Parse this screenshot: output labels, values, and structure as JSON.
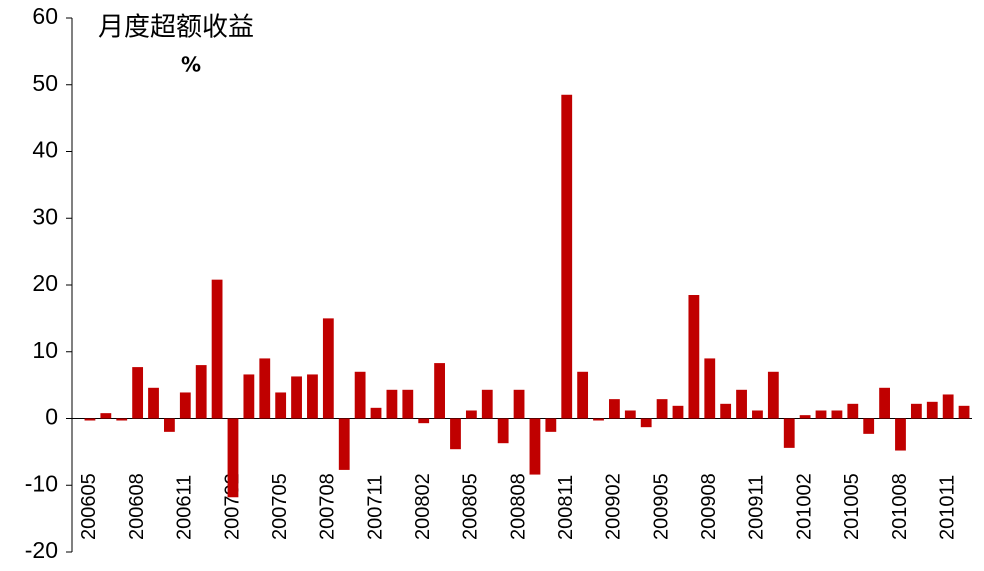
{
  "chart_data": {
    "type": "bar",
    "title": "月度超额收益",
    "unit": "%",
    "categories": [
      "200605",
      null,
      null,
      "200608",
      null,
      null,
      "200611",
      null,
      null,
      "200702",
      null,
      null,
      "200705",
      null,
      null,
      "200708",
      null,
      null,
      "200711",
      null,
      null,
      "200802",
      null,
      null,
      "200805",
      null,
      null,
      "200808",
      null,
      null,
      "200811",
      null,
      null,
      "200902",
      null,
      null,
      "200905",
      null,
      null,
      "200908",
      null,
      null,
      "200911",
      null,
      null,
      "201002",
      null,
      null,
      "201005",
      null,
      null,
      "201008",
      null,
      null,
      "201011",
      null
    ],
    "values": [
      -0.3,
      0.8,
      -0.3,
      7.7,
      4.6,
      -2,
      3.9,
      8,
      20.8,
      -11.8,
      6.6,
      9,
      3.9,
      6.3,
      6.6,
      15,
      -7.7,
      7,
      1.6,
      4.3,
      4.3,
      -0.7,
      8.3,
      -4.6,
      1.2,
      4.3,
      -3.7,
      4.3,
      -8.4,
      -2,
      48.5,
      7,
      -0.3,
      2.9,
      1.2,
      -1.3,
      2.9,
      1.9,
      18.5,
      9,
      2.2,
      4.3,
      1.2,
      7,
      -4.4,
      0.5,
      1.2,
      1.2,
      2.2,
      -2.3,
      4.6,
      -4.8,
      2.2,
      2.5,
      3.6,
      1.9
    ],
    "color": "#c00000",
    "ylim": [
      -20,
      60
    ],
    "yticks": [
      -20,
      -10,
      0,
      10,
      20,
      30,
      40,
      50,
      60
    ],
    "grid": false
  }
}
